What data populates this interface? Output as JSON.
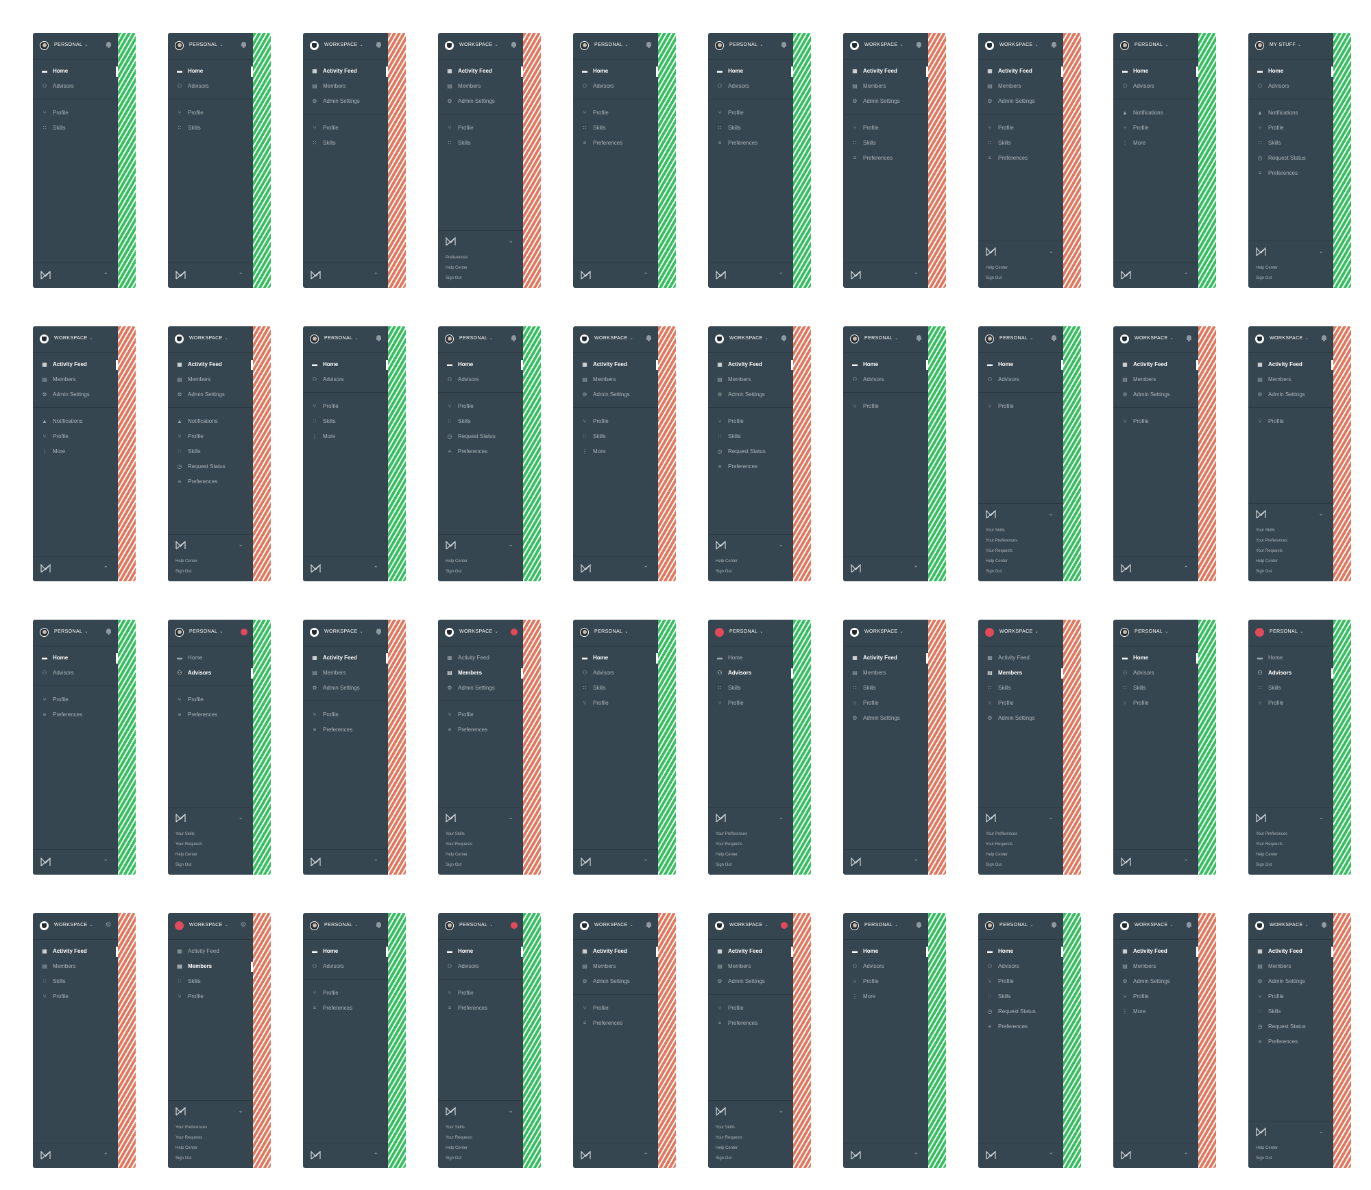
{
  "app": "Sidebar navigation variants",
  "colors": {
    "sidebar": "#364650",
    "ok": "#34c05e",
    "bad": "#e2775e",
    "badge": "#e24a5b"
  },
  "icons": {
    "home": "chat-bubble-icon",
    "advisors": "people-icon",
    "activity": "grid-icon",
    "members": "id-card-icon",
    "admin": "gear-icon",
    "profile": "branch-icon",
    "skills": "dots-grid-icon",
    "prefs": "sliders-icon",
    "notifications": "bell-icon",
    "more": "vertical-dots-icon",
    "request": "clock-icon"
  },
  "panels": [
    {
      "ws": "PERSONAL",
      "av": "pers",
      "right": "bell",
      "stripe": "green",
      "top": [
        "Home*",
        "Advisors"
      ],
      "bottom": [
        "Profile",
        "Skills"
      ],
      "menu": []
    },
    {
      "ws": "PERSONAL",
      "av": "pers",
      "right": "bell",
      "stripe": "green",
      "top": [
        "Home*",
        "Advisors"
      ],
      "bottom": [
        "Profile",
        "Skills"
      ],
      "menu": []
    },
    {
      "ws": "WORKSPACE",
      "av": "ws",
      "right": "bell",
      "stripe": "red",
      "top": [
        "Activity Feed*",
        "Members",
        "Admin Settings"
      ],
      "bottom": [
        "Profile",
        "Skills"
      ],
      "menu": []
    },
    {
      "ws": "WORKSPACE",
      "av": "ws",
      "right": "bell",
      "stripe": "red",
      "top": [
        "Activity Feed*",
        "Members",
        "Admin Settings"
      ],
      "bottom": [
        "Profile",
        "Skills"
      ],
      "menu": [
        "Preferences",
        "Help Center",
        "Sign Out"
      ]
    },
    {
      "ws": "PERSONAL",
      "av": "pers",
      "right": "bell",
      "stripe": "green",
      "top": [
        "Home*",
        "Advisors"
      ],
      "bottom": [
        "Profile",
        "Skills",
        "Preferences"
      ],
      "menu": []
    },
    {
      "ws": "PERSONAL",
      "av": "pers",
      "right": "bell",
      "stripe": "green",
      "top": [
        "Home*",
        "Advisors"
      ],
      "bottom": [
        "Profile",
        "Skills",
        "Preferences"
      ],
      "menu": []
    },
    {
      "ws": "WORKSPACE",
      "av": "ws",
      "right": "bell",
      "stripe": "red",
      "top": [
        "Activity Feed*",
        "Members",
        "Admin Settings"
      ],
      "bottom": [
        "Profile",
        "Skills",
        "Preferences"
      ],
      "menu": []
    },
    {
      "ws": "WORKSPACE",
      "av": "ws",
      "right": "bell",
      "stripe": "red",
      "top": [
        "Activity Feed*",
        "Members",
        "Admin Settings"
      ],
      "bottom": [
        "Profile",
        "Skills",
        "Preferences"
      ],
      "menu": [
        "Help Center",
        "Sign Out"
      ]
    },
    {
      "ws": "PERSONAL",
      "av": "pers",
      "right": "none",
      "stripe": "green",
      "top": [
        "Home*",
        "Advisors"
      ],
      "bottom": [
        "Notifications",
        "Profile",
        "More"
      ],
      "menu": []
    },
    {
      "ws": "MY STUFF",
      "av": "pers",
      "right": "none",
      "stripe": "green",
      "top": [
        "Home*",
        "Advisors"
      ],
      "bottom": [
        "Notifications",
        "Profile",
        "Skills",
        "Request Status",
        "Preferences"
      ],
      "menu": [
        "Help Center",
        "Sign Out"
      ]
    },
    {
      "ws": "WORKSPACE",
      "av": "ws",
      "right": "none",
      "stripe": "red",
      "top": [
        "Activity Feed*",
        "Members",
        "Admin Settings"
      ],
      "bottom": [
        "Notifications",
        "Profile",
        "More"
      ],
      "menu": []
    },
    {
      "ws": "WORKSPACE",
      "av": "ws",
      "right": "none",
      "stripe": "red",
      "top": [
        "Activity Feed*",
        "Members",
        "Admin Settings"
      ],
      "bottom": [
        "Notifications",
        "Profile",
        "Skills",
        "Request Status",
        "Preferences"
      ],
      "menu": [
        "Help Center",
        "Sign Out"
      ]
    },
    {
      "ws": "PERSONAL",
      "av": "pers",
      "right": "bell",
      "stripe": "green",
      "top": [
        "Home*",
        "Advisors"
      ],
      "bottom": [
        "Profile",
        "Skills",
        "More"
      ],
      "menu": []
    },
    {
      "ws": "PERSONAL",
      "av": "pers",
      "right": "bell",
      "stripe": "green",
      "top": [
        "Home*",
        "Advisors"
      ],
      "bottom": [
        "Profile",
        "Skills",
        "Request Status",
        "Preferences"
      ],
      "menu": [
        "Help Center",
        "Sign Out"
      ]
    },
    {
      "ws": "WORKSPACE",
      "av": "ws",
      "right": "bell",
      "stripe": "red",
      "top": [
        "Activity Feed*",
        "Members",
        "Admin Settings"
      ],
      "bottom": [
        "Profile",
        "Skills",
        "More"
      ],
      "menu": []
    },
    {
      "ws": "WORKSPACE",
      "av": "ws",
      "right": "bell",
      "stripe": "red",
      "top": [
        "Activity Feed*",
        "Members",
        "Admin Settings"
      ],
      "bottom": [
        "Profile",
        "Skills",
        "Request Status",
        "Preferences"
      ],
      "menu": [
        "Help Center",
        "Sign Out"
      ]
    },
    {
      "ws": "PERSONAL",
      "av": "pers",
      "right": "bell",
      "stripe": "green",
      "top": [
        "Home*",
        "Advisors"
      ],
      "bottom": [
        "Profile"
      ],
      "menu": []
    },
    {
      "ws": "PERSONAL",
      "av": "pers",
      "right": "bell",
      "stripe": "green",
      "top": [
        "Home*",
        "Advisors"
      ],
      "bottom": [
        "Profile"
      ],
      "menu": [
        "Your Skills",
        "Your Preferences",
        "Your Requests",
        "Help Center",
        "Sign Out"
      ]
    },
    {
      "ws": "WORKSPACE",
      "av": "ws",
      "right": "bell",
      "stripe": "red",
      "top": [
        "Activity Feed*",
        "Members",
        "Admin Settings"
      ],
      "bottom": [
        "Profile"
      ],
      "menu": []
    },
    {
      "ws": "WORKSPACE",
      "av": "ws",
      "right": "bell",
      "stripe": "red",
      "top": [
        "Activity Feed*",
        "Members",
        "Admin Settings"
      ],
      "bottom": [
        "Profile"
      ],
      "menu": [
        "Your Skills",
        "Your Preferences",
        "Your Requests",
        "Help Center",
        "Sign Out"
      ]
    },
    {
      "ws": "PERSONAL",
      "av": "pers",
      "right": "bell",
      "stripe": "green",
      "top": [
        "Home*",
        "Advisors"
      ],
      "bottom": [
        "Profile",
        "Preferences"
      ],
      "menu": []
    },
    {
      "ws": "PERSONAL",
      "av": "pers",
      "right": "badge",
      "stripe": "green",
      "top": [
        "Home",
        "Advisors*"
      ],
      "bottom": [
        "Profile",
        "Preferences"
      ],
      "menu": [
        "Your Skills",
        "Your Requests",
        "Help Center",
        "Sign Out"
      ]
    },
    {
      "ws": "WORKSPACE",
      "av": "ws",
      "right": "bell",
      "stripe": "red",
      "top": [
        "Activity Feed*",
        "Members",
        "Admin Settings"
      ],
      "bottom": [
        "Profile",
        "Preferences"
      ],
      "menu": []
    },
    {
      "ws": "WORKSPACE",
      "av": "ws",
      "right": "badge",
      "stripe": "red",
      "top": [
        "Activity Feed",
        "Members*",
        "Admin Settings"
      ],
      "bottom": [
        "Profile",
        "Preferences"
      ],
      "menu": [
        "Your Skills",
        "Your Requests",
        "Help Center",
        "Sign Out"
      ]
    },
    {
      "ws": "PERSONAL",
      "av": "pers",
      "right": "none",
      "stripe": "green",
      "top": [
        "Home*",
        "Advisors",
        "Skills",
        "Profile"
      ],
      "bottom": [],
      "menu": []
    },
    {
      "ws": "PERSONAL",
      "av": "red",
      "right": "none",
      "stripe": "green",
      "top": [
        "Home",
        "Advisors*",
        "Skills",
        "Profile"
      ],
      "bottom": [],
      "menu": [
        "Your Preferences",
        "Your Requests",
        "Help Center",
        "Sign Out"
      ]
    },
    {
      "ws": "WORKSPACE",
      "av": "ws",
      "right": "none",
      "stripe": "red",
      "top": [
        "Activity Feed*",
        "Members",
        "Skills",
        "Profile",
        "Admin Settings"
      ],
      "bottom": [],
      "menu": []
    },
    {
      "ws": "WORKSPACE",
      "av": "red",
      "right": "none",
      "stripe": "red",
      "top": [
        "Activity Feed",
        "Members*",
        "Skills",
        "Profile",
        "Admin Settings"
      ],
      "bottom": [],
      "menu": [
        "Your Preferences",
        "Your Requests",
        "Help Center",
        "Sign Out"
      ]
    },
    {
      "ws": "PERSONAL",
      "av": "pers",
      "right": "none",
      "stripe": "green",
      "top": [
        "Home*",
        "Advisors",
        "Skills",
        "Profile"
      ],
      "bottom": [],
      "menu": []
    },
    {
      "ws": "PERSONAL",
      "av": "red",
      "right": "none",
      "stripe": "green",
      "top": [
        "Home",
        "Advisors*",
        "Skills",
        "Profile"
      ],
      "bottom": [],
      "menu": [
        "Your Preferences",
        "Your Requests",
        "Help Center",
        "Sign Out"
      ]
    },
    {
      "ws": "WORKSPACE",
      "av": "ws",
      "right": "gear",
      "stripe": "red",
      "top": [
        "Activity Feed*",
        "Members",
        "Skills",
        "Profile"
      ],
      "bottom": [],
      "menu": []
    },
    {
      "ws": "WORKSPACE",
      "av": "red",
      "right": "gear",
      "stripe": "red",
      "top": [
        "Activity Feed",
        "Members*",
        "Skills",
        "Profile"
      ],
      "bottom": [],
      "menu": [
        "Your Preferences",
        "Your Requests",
        "Help Center",
        "Sign Out"
      ]
    },
    {
      "ws": "PERSONAL",
      "av": "pers",
      "right": "bell",
      "stripe": "green",
      "top": [
        "Home*",
        "Advisors"
      ],
      "bottom": [
        "Profile",
        "Preferences"
      ],
      "menu": []
    },
    {
      "ws": "PERSONAL",
      "av": "pers",
      "right": "badge",
      "stripe": "green",
      "top": [
        "Home*",
        "Advisors"
      ],
      "bottom": [
        "Profile",
        "Preferences"
      ],
      "menu": [
        "Your Skills",
        "Your Requests",
        "Help Center",
        "Sign Out"
      ]
    },
    {
      "ws": "WORKSPACE",
      "av": "ws",
      "right": "bell",
      "stripe": "red",
      "top": [
        "Activity Feed*",
        "Members",
        "Admin Settings"
      ],
      "bottom": [
        "Profile",
        "Preferences"
      ],
      "menu": []
    },
    {
      "ws": "WORKSPACE",
      "av": "ws",
      "right": "badge",
      "stripe": "red",
      "top": [
        "Activity Feed*",
        "Members",
        "Admin Settings"
      ],
      "bottom": [
        "Profile",
        "Preferences"
      ],
      "menu": [
        "Your Skills",
        "Your Requests",
        "Help Center",
        "Sign Out"
      ]
    },
    {
      "ws": "PERSONAL",
      "av": "pers",
      "right": "bell",
      "stripe": "green",
      "top": [
        "Home*",
        "Advisors",
        "Profile",
        "More"
      ],
      "bottom": [],
      "menu": []
    },
    {
      "ws": "PERSONAL",
      "av": "pers",
      "right": "bell",
      "stripe": "green",
      "top": [
        "Home*",
        "Advisors",
        "Profile",
        "Skills",
        "Request Status",
        "Preferences"
      ],
      "bottom": [],
      "menu": []
    },
    {
      "ws": "WORKSPACE",
      "av": "ws",
      "right": "bell",
      "stripe": "red",
      "top": [
        "Activity Feed*",
        "Members",
        "Admin Settings",
        "Profile",
        "More"
      ],
      "bottom": [],
      "menu": []
    },
    {
      "ws": "WORKSPACE",
      "av": "ws",
      "right": "bell",
      "stripe": "red",
      "top": [
        "Activity Feed*",
        "Members",
        "Admin Settings",
        "Profile",
        "Skills",
        "Request Status",
        "Preferences"
      ],
      "bottom": [],
      "menu": [
        "Help Center",
        "Sign Out"
      ]
    }
  ]
}
